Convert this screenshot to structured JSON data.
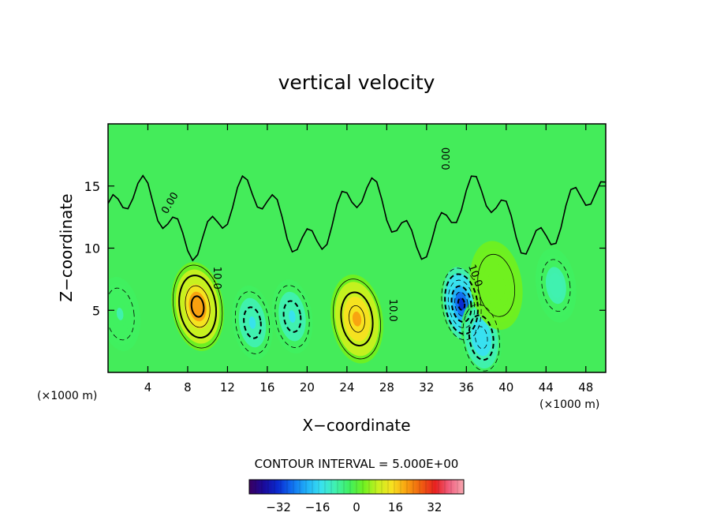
{
  "chart_data": {
    "type": "heatmap",
    "title": "vertical velocity",
    "xlabel": "X−coordinate",
    "ylabel": "Z−coordinate",
    "x_unit": "(×1000 m)",
    "x_unit_right": "(×1000 m)",
    "xlim": [
      0,
      50
    ],
    "ylim": [
      0,
      20
    ],
    "x_ticks": [
      4,
      8,
      12,
      16,
      20,
      24,
      28,
      32,
      36,
      40,
      44,
      48
    ],
    "y_ticks": [
      5,
      10,
      15
    ],
    "x_tick_labels": [
      "4",
      "8",
      "12",
      "16",
      "20",
      "24",
      "28",
      "32",
      "36",
      "40",
      "44",
      "48"
    ],
    "y_tick_labels": [
      "5",
      "10",
      "15"
    ],
    "contour_interval_text": "CONTOUR INTERVAL = 5.000E+00",
    "contour_labels": [
      {
        "text": "0.00",
        "x": 6.5,
        "y": 13.5,
        "rot": -60
      },
      {
        "text": "10.0",
        "x": 10.6,
        "y": 7.6,
        "rot": 90
      },
      {
        "text": "10.0",
        "x": 28.3,
        "y": 5.0,
        "rot": 90
      },
      {
        "text": "0.00",
        "x": 34.3,
        "y": 17.2,
        "rot": -90
      },
      {
        "text": "10.0",
        "x": 36.6,
        "y": 7.7,
        "rot": 70
      }
    ],
    "field_features": [
      {
        "kind": "updraft",
        "x": 9.0,
        "z": 5.3,
        "peak": 20
      },
      {
        "kind": "downdraft",
        "x": 14.5,
        "z": 4.0,
        "peak": -13
      },
      {
        "kind": "downdraft",
        "x": 18.5,
        "z": 4.5,
        "peak": -13
      },
      {
        "kind": "updraft",
        "x": 25.0,
        "z": 4.3,
        "peak": 18
      },
      {
        "kind": "downdraft",
        "x": 35.5,
        "z": 5.5,
        "peak": -30
      },
      {
        "kind": "downdraft",
        "x": 37.5,
        "z": 2.8,
        "peak": -16
      },
      {
        "kind": "downdraft",
        "x": 1.2,
        "z": 4.7,
        "peak": -6
      },
      {
        "kind": "downdraft",
        "x": 45.0,
        "z": 7.0,
        "peak": -8
      },
      {
        "kind": "updraft",
        "x": 39.0,
        "z": 7.0,
        "peak": 4
      }
    ],
    "colorbar": {
      "range": [
        -44,
        44
      ],
      "ticks": [
        -32,
        -16,
        0,
        16,
        32
      ],
      "tick_labels": [
        "−32",
        "−16",
        "0",
        "16",
        "32"
      ],
      "colors": [
        "#3a0060",
        "#1a0a9a",
        "#0a2ad0",
        "#1070f0",
        "#20b0f8",
        "#38e0f0",
        "#40f0b0",
        "#40f060",
        "#70f020",
        "#c8f020",
        "#f8e020",
        "#f8a010",
        "#f06010",
        "#e82020",
        "#f06080",
        "#f8a8b0"
      ]
    },
    "grid": false
  }
}
